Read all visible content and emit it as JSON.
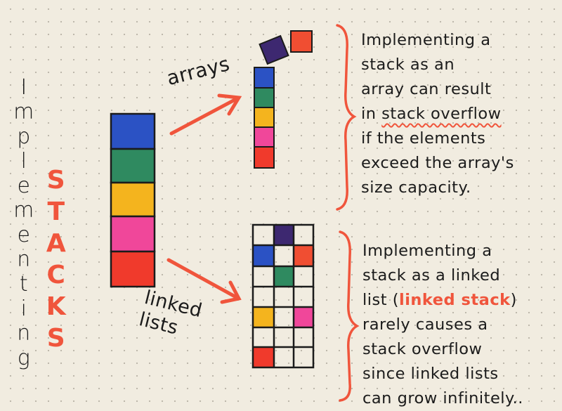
{
  "title": {
    "vertical_word": "Implementing",
    "highlight_word": "STACKS"
  },
  "arrows": {
    "top_label": "arrays",
    "bottom_label_line1": "linked",
    "bottom_label_line2": "lists"
  },
  "notes": {
    "array": {
      "line1": "Implementing a",
      "line2": "stack as an",
      "line3": "array can result",
      "line4_prefix": "in ",
      "line4_emphasis": "stack overflow",
      "line5": "if the elements",
      "line6": "exceed the array's",
      "line7": "size capacity."
    },
    "linked": {
      "line1": "Implementing a",
      "line2": "stack as a linked",
      "line3_prefix": "list (",
      "line3_emphasis": "linked stack",
      "line3_suffix": ")",
      "line4": "rarely causes a",
      "line5": "stack overflow",
      "line6": "since linked lists",
      "line7": "can grow infinitely.."
    }
  },
  "colors": {
    "ink": "#1b1b1b",
    "accent_red": "#f0553c",
    "blue": "#2b52c4",
    "green": "#2f8a60",
    "yellow": "#f4b41e",
    "pink": "#f0479a",
    "red": "#f03a2c",
    "purple": "#3d2870",
    "orange": "#f04e32"
  }
}
